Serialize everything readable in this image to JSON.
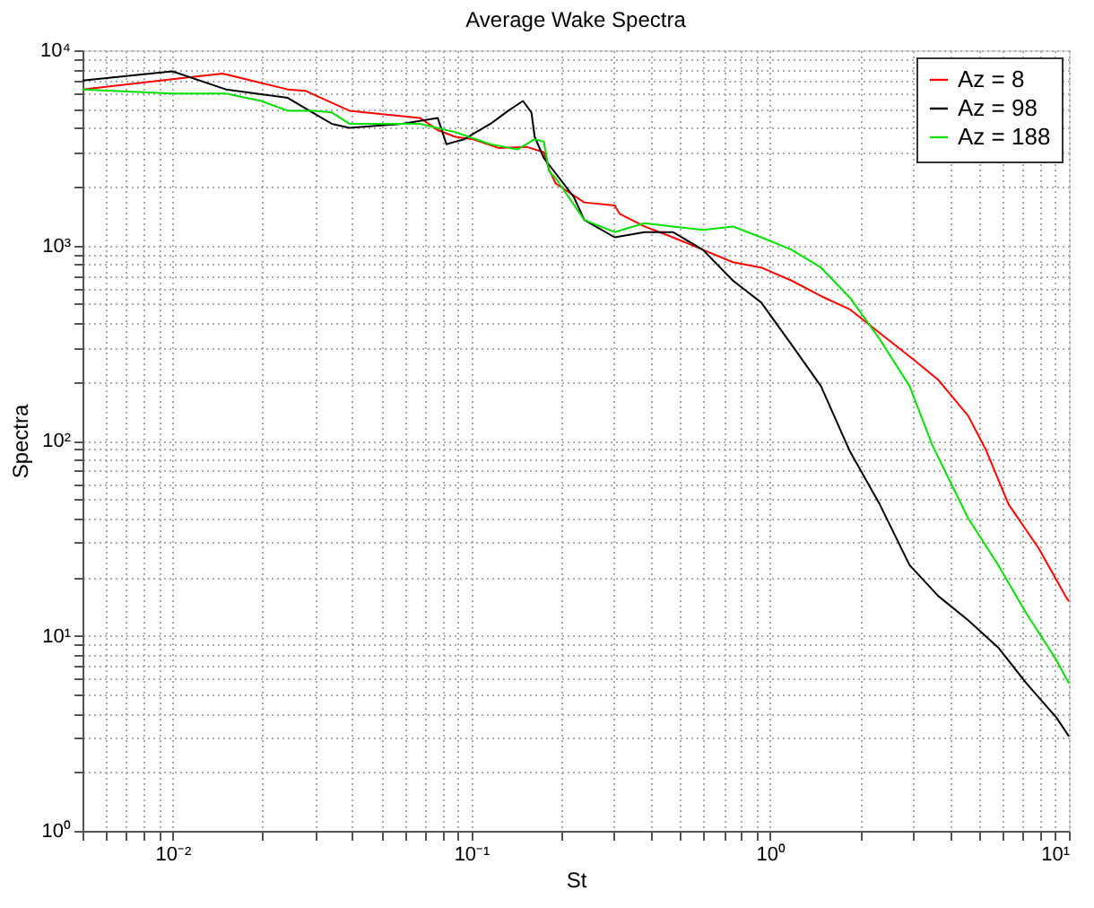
{
  "chart_data": {
    "type": "line",
    "title": "Average Wake Spectra",
    "xlabel": "St",
    "ylabel": "Spectra",
    "log": "xy",
    "grid": true,
    "legend": "top right",
    "line_style": "solid",
    "marker": "none",
    "xlim": [
      0.005,
      10
    ],
    "ylim": [
      1,
      10000
    ],
    "xticks": [
      {
        "value": 0.005,
        "label": null
      },
      {
        "value": 0.006,
        "label": null
      },
      {
        "value": 0.007,
        "label": null
      },
      {
        "value": 0.008,
        "label": null
      },
      {
        "value": 0.009,
        "label": null
      },
      {
        "value": 0.01,
        "label": "10⁻²"
      },
      {
        "value": 0.02,
        "label": null
      },
      {
        "value": 0.03,
        "label": null
      },
      {
        "value": 0.04,
        "label": null
      },
      {
        "value": 0.05,
        "label": null
      },
      {
        "value": 0.06,
        "label": null
      },
      {
        "value": 0.07,
        "label": null
      },
      {
        "value": 0.08,
        "label": null
      },
      {
        "value": 0.09,
        "label": null
      },
      {
        "value": 0.1,
        "label": "10⁻¹"
      },
      {
        "value": 0.2,
        "label": null
      },
      {
        "value": 0.3,
        "label": null
      },
      {
        "value": 0.4,
        "label": null
      },
      {
        "value": 0.5,
        "label": null
      },
      {
        "value": 0.6,
        "label": null
      },
      {
        "value": 0.7,
        "label": null
      },
      {
        "value": 0.8,
        "label": null
      },
      {
        "value": 0.9,
        "label": null
      },
      {
        "value": 1,
        "label": "10⁰"
      },
      {
        "value": 2,
        "label": null
      },
      {
        "value": 3,
        "label": null
      },
      {
        "value": 4,
        "label": null
      },
      {
        "value": 5,
        "label": null
      },
      {
        "value": 6,
        "label": null
      },
      {
        "value": 7,
        "label": null
      },
      {
        "value": 8,
        "label": null
      },
      {
        "value": 9,
        "label": null
      },
      {
        "value": 10,
        "label": "10¹"
      }
    ],
    "yticks": [
      {
        "value": 1,
        "label": "10⁰"
      },
      {
        "value": 2,
        "label": null
      },
      {
        "value": 3,
        "label": null
      },
      {
        "value": 4,
        "label": null
      },
      {
        "value": 5,
        "label": null
      },
      {
        "value": 6,
        "label": null
      },
      {
        "value": 7,
        "label": null
      },
      {
        "value": 8,
        "label": null
      },
      {
        "value": 9,
        "label": null
      },
      {
        "value": 10,
        "label": "10¹"
      },
      {
        "value": 20,
        "label": null
      },
      {
        "value": 30,
        "label": null
      },
      {
        "value": 40,
        "label": null
      },
      {
        "value": 50,
        "label": null
      },
      {
        "value": 60,
        "label": null
      },
      {
        "value": 70,
        "label": null
      },
      {
        "value": 80,
        "label": null
      },
      {
        "value": 90,
        "label": null
      },
      {
        "value": 100,
        "label": "10²"
      },
      {
        "value": 200,
        "label": null
      },
      {
        "value": 300,
        "label": null
      },
      {
        "value": 400,
        "label": null
      },
      {
        "value": 500,
        "label": null
      },
      {
        "value": 600,
        "label": null
      },
      {
        "value": 700,
        "label": null
      },
      {
        "value": 800,
        "label": null
      },
      {
        "value": 900,
        "label": null
      },
      {
        "value": 1000,
        "label": "10³"
      },
      {
        "value": 2000,
        "label": null
      },
      {
        "value": 3000,
        "label": null
      },
      {
        "value": 4000,
        "label": null
      },
      {
        "value": 5000,
        "label": null
      },
      {
        "value": 6000,
        "label": null
      },
      {
        "value": 7000,
        "label": null
      },
      {
        "value": 8000,
        "label": null
      },
      {
        "value": 9000,
        "label": null
      },
      {
        "value": 10000,
        "label": "10⁴"
      }
    ],
    "series": [
      {
        "name": "Az = 8",
        "color": "#ff0000",
        "x": [
          0.005,
          0.01,
          0.0147,
          0.0243,
          0.0278,
          0.0391,
          0.0673,
          0.0772,
          0.0885,
          0.101,
          0.124,
          0.153,
          0.175,
          0.182,
          0.192,
          0.239,
          0.302,
          0.314,
          0.38,
          0.473,
          0.596,
          0.751,
          0.934,
          1.18,
          1.48,
          1.85,
          2.33,
          2.93,
          3.65,
          4.6,
          5.27,
          6.29,
          7.93,
          9.73,
          10
        ],
        "values": [
          6300,
          7100,
          7600,
          6300,
          6200,
          4900,
          4500,
          3900,
          3600,
          3500,
          3150,
          3200,
          3000,
          2450,
          2070,
          1660,
          1600,
          1450,
          1250,
          1100,
          950,
          820,
          770,
          660,
          550,
          470,
          355,
          270,
          205,
          134,
          90,
          47,
          28,
          16,
          15
        ]
      },
      {
        "name": "Az = 98",
        "color": "#000000",
        "x": [
          0.005,
          0.01,
          0.0151,
          0.0243,
          0.0341,
          0.0391,
          0.0588,
          0.0772,
          0.0826,
          0.0947,
          0.116,
          0.133,
          0.149,
          0.159,
          0.163,
          0.175,
          0.22,
          0.239,
          0.302,
          0.38,
          0.473,
          0.596,
          0.751,
          0.934,
          1.18,
          1.48,
          1.85,
          2.33,
          2.93,
          3.65,
          4.6,
          5.8,
          7.21,
          9.09,
          10
        ],
        "values": [
          7000,
          7800,
          6300,
          5700,
          4200,
          4000,
          4200,
          4500,
          3300,
          3500,
          4200,
          4900,
          5500,
          4800,
          3600,
          2800,
          1780,
          1350,
          1100,
          1170,
          1170,
          950,
          660,
          510,
          310,
          190,
          88,
          47,
          23,
          16,
          12,
          8.7,
          5.7,
          3.8,
          3.05
        ]
      },
      {
        "name": "Az = 188",
        "color": "#00e000",
        "x": [
          0.005,
          0.01,
          0.0151,
          0.0198,
          0.0243,
          0.0297,
          0.0341,
          0.0391,
          0.0673,
          0.0885,
          0.116,
          0.143,
          0.163,
          0.175,
          0.182,
          0.192,
          0.239,
          0.302,
          0.38,
          0.473,
          0.596,
          0.751,
          0.934,
          1.18,
          1.48,
          1.85,
          2.33,
          2.93,
          3.5,
          4.6,
          5.8,
          7.21,
          9.09,
          10
        ],
        "values": [
          6300,
          6000,
          6000,
          5500,
          4900,
          4900,
          4800,
          4200,
          4200,
          3800,
          3300,
          3100,
          3500,
          3400,
          2400,
          2200,
          1350,
          1170,
          1300,
          1250,
          1200,
          1250,
          1100,
          950,
          770,
          540,
          330,
          190,
          94,
          40,
          23,
          13,
          7.5,
          5.7
        ]
      }
    ]
  }
}
